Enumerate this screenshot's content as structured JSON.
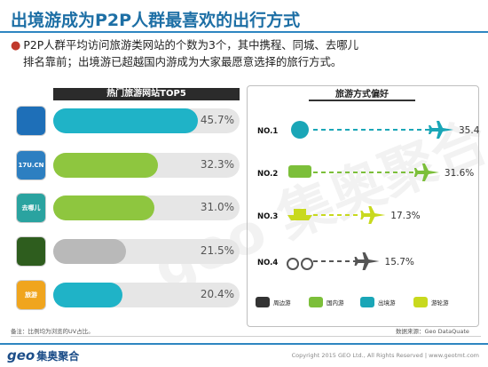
{
  "page": {
    "title": "出境游成为P2P人群最喜欢的出行方式",
    "bullet_line1": "P2P人群平均访问旅游类网站的个数为3个，其中携程、同城、去哪儿",
    "bullet_line2": "排名靠前；出境游已超越国内游成为大家最愿意选择的旅行方式。",
    "note": "备注：比例均为浏览的UV占比。",
    "source": "数据来源：Geo DataQuate",
    "logo_text": "geo",
    "logo_cn": "集奥聚合",
    "copyright": "Copyright 2015 GEO Ltd., All Rights Reserved  |  www.geotmt.com",
    "watermark": "geo 集奥聚合"
  },
  "icons": [
    {
      "name": "ctrip-icon",
      "color": "#1e6fb8",
      "label": ""
    },
    {
      "name": "ly-icon",
      "color": "#2d7fc1",
      "label": "17U.CN"
    },
    {
      "name": "qunar-icon",
      "color": "#2aa3a0",
      "label": "去哪儿"
    },
    {
      "name": "lvmama-icon",
      "color": "#2e5d1e",
      "label": ""
    },
    {
      "name": "tuniu-icon",
      "color": "#f0a51e",
      "label": "旅游"
    }
  ],
  "chart_data": [
    {
      "type": "bar",
      "title": "热门旅游网站TOP5",
      "orientation": "horizontal",
      "values": [
        45.7,
        32.3,
        31.0,
        21.5,
        20.4
      ],
      "labels": [
        "45.7%",
        "32.3%",
        "31.0%",
        "21.5%",
        "20.4%"
      ],
      "colors": [
        "#1fb3c7",
        "#8ec63f",
        "#8ec63f",
        "#b9b9b9",
        "#1fb3c7"
      ],
      "max": 100
    },
    {
      "type": "bar",
      "title": "旅游方式偏好",
      "orientation": "horizontal",
      "categories": [
        "NO.1",
        "NO.2",
        "NO.3",
        "NO.4"
      ],
      "items": [
        "出境游",
        "国内游",
        "游轮游",
        "周边游"
      ],
      "values": [
        35.4,
        31.6,
        17.3,
        15.7
      ],
      "labels": [
        "35.4%",
        "31.6%",
        "17.3%",
        "15.7%"
      ],
      "icons": [
        "globe-icon",
        "van-icon",
        "ship-icon",
        "bike-icon"
      ],
      "colors": [
        "#1aa6b7",
        "#7cbf3a",
        "#c8d91e",
        "#555555"
      ],
      "legend": [
        "周边游",
        "国内游",
        "出境游",
        "游轮游"
      ]
    }
  ]
}
